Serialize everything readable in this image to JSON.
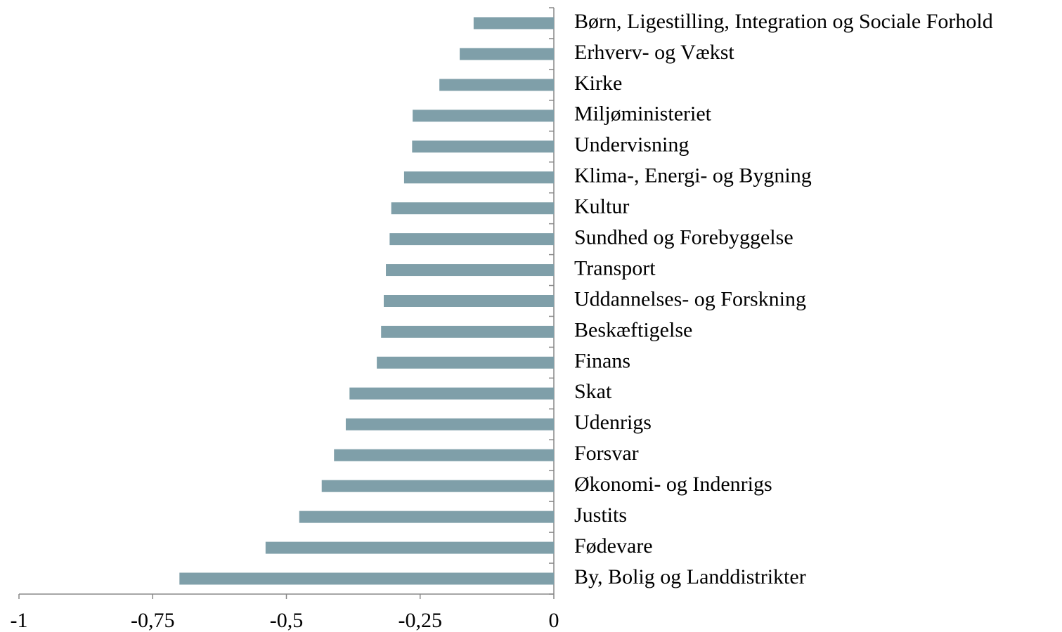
{
  "chart_data": {
    "type": "barh",
    "categories": [
      "Børn, Ligestilling, Integration og Sociale Forhold",
      "Erhverv- og Vækst",
      "Kirke",
      "Miljøministeriet",
      "Undervisning",
      "Klima-, Energi- og Bygning",
      "Kultur",
      "Sundhed og Forebyggelse",
      "Transport",
      "Uddannelses- og Forskning",
      "Beskæftigelse",
      "Finans",
      "Skat",
      "Udenrigs",
      "Forsvar",
      "Økonomi- og Indenrigs",
      "Justits",
      "Fødevare",
      "By, Bolig og Landdistrikter"
    ],
    "values": [
      -0.15,
      -0.176,
      -0.214,
      -0.264,
      -0.265,
      -0.28,
      -0.304,
      -0.307,
      -0.314,
      -0.318,
      -0.323,
      -0.331,
      -0.382,
      -0.389,
      -0.411,
      -0.434,
      -0.476,
      -0.539,
      -0.7
    ],
    "color": "#7f9fa9",
    "xlim": [
      -1,
      0
    ],
    "xticks": [
      -1,
      {
        "value": -0.75,
        "label": "-0,75"
      },
      {
        "value": -0.5,
        "label": "-0,5"
      },
      {
        "value": -0.25,
        "label": "-0,25"
      },
      0
    ],
    "grid": false
  }
}
